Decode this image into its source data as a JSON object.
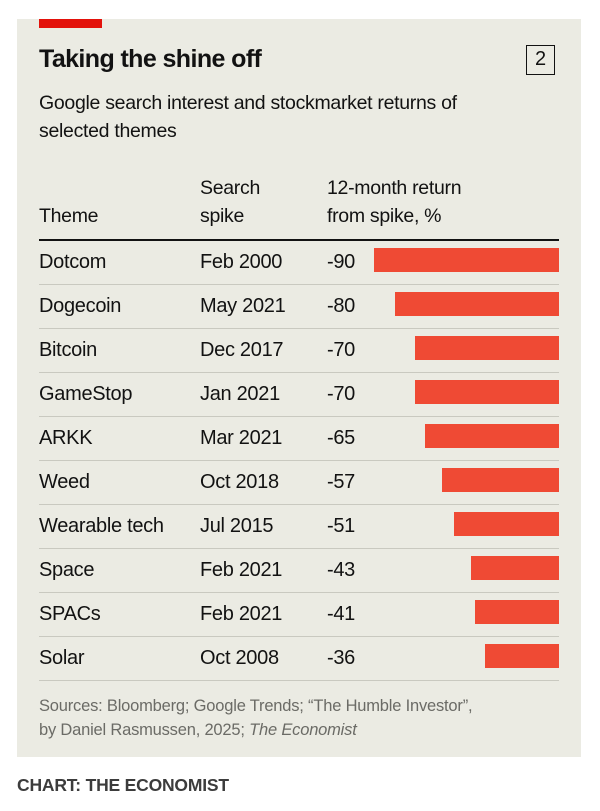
{
  "header": {
    "title": "Taking the shine off",
    "chart_number": "2",
    "subtitle": "Google search interest and stockmarket returns of selected themes"
  },
  "colors": {
    "background": "#ebebe3",
    "accent_tag": "#e3120b",
    "bar": "#ef4a34"
  },
  "columns": {
    "theme": "Theme",
    "spike_line1": "Search",
    "spike_line2": "spike",
    "return_line1": "12-month return",
    "return_line2": "from spike, %"
  },
  "chart_data": {
    "type": "table",
    "title": "Taking the shine off",
    "subtitle": "Google search interest and stockmarket returns of selected themes",
    "columns": [
      "Theme",
      "Search spike",
      "12-month return from spike, %"
    ],
    "rows": [
      {
        "theme": "Dotcom",
        "spike": "Feb 2000",
        "return": -90,
        "return_label": "-90"
      },
      {
        "theme": "Dogecoin",
        "spike": "May 2021",
        "return": -80,
        "return_label": "-80"
      },
      {
        "theme": "Bitcoin",
        "spike": "Dec 2017",
        "return": -70,
        "return_label": "-70"
      },
      {
        "theme": "GameStop",
        "spike": "Jan 2021",
        "return": -70,
        "return_label": "-70"
      },
      {
        "theme": "ARKK",
        "spike": "Mar 2021",
        "return": -65,
        "return_label": "-65"
      },
      {
        "theme": "Weed",
        "spike": "Oct 2018",
        "return": -57,
        "return_label": "-57"
      },
      {
        "theme": "Wearable tech",
        "spike": "Jul 2015",
        "return": -51,
        "return_label": "-51"
      },
      {
        "theme": "Space",
        "spike": "Feb 2021",
        "return": -43,
        "return_label": "-43"
      },
      {
        "theme": "SPACs",
        "spike": "Feb 2021",
        "return": -41,
        "return_label": "-41"
      },
      {
        "theme": "Solar",
        "spike": "Oct 2008",
        "return": -36,
        "return_label": "-36"
      }
    ],
    "bar_range": [
      0,
      -90
    ]
  },
  "footer": {
    "sources_line1": "Sources: Bloomberg; Google Trends; “The Humble Investor”,",
    "sources_line2": "by Daniel Rasmussen, 2025; ",
    "sources_italic": "The Economist",
    "credit": "CHART: THE ECONOMIST"
  }
}
